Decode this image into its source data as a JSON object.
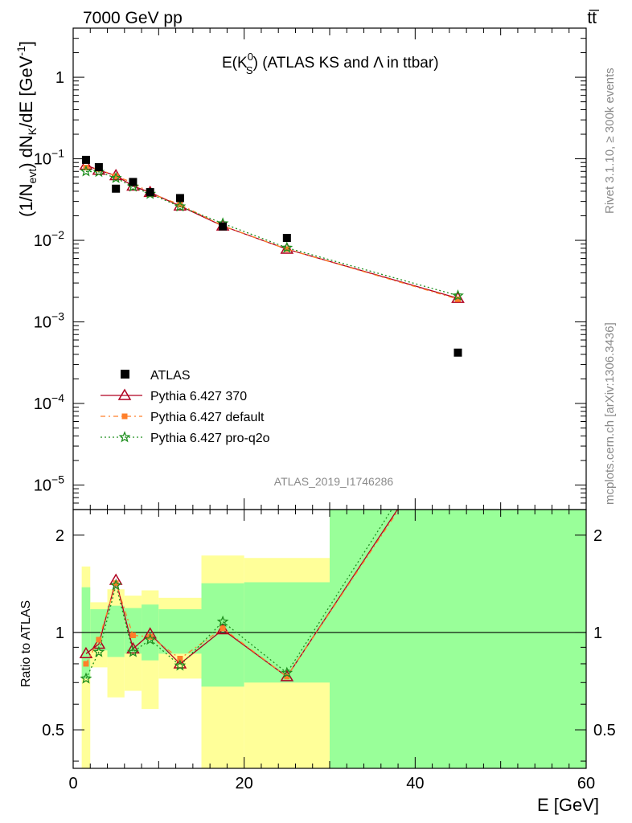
{
  "header": {
    "left": "7000 GeV pp",
    "right": "tt̅"
  },
  "side": {
    "rivet": "Rivet 3.1.10, ≥ 300k events",
    "mcplots": "mcplots.cern.ch [arXiv:1306.3436]"
  },
  "chart_data": {
    "type": "line",
    "title": {
      "main": "E(K",
      "sub": "S",
      "sup": "0",
      "rest": ") (ATLAS KS and Λ in ttbar)"
    },
    "analysis_id": "ATLAS_2019_I1746286",
    "xlabel": "E [GeV]",
    "ylabel": "(1/N_evt) dN_K/dE [GeV^-1]",
    "ratio_ylabel": "Ratio to ATLAS",
    "xlim": [
      0,
      60
    ],
    "ylim": [
      5e-06,
      4
    ],
    "yscale": "log",
    "ratio_ylim": [
      0.38,
      2.4
    ],
    "ratio_yscale": "log",
    "x_ticks": [
      "0",
      "20",
      "40",
      "60"
    ],
    "y_ticks": [
      {
        "base": "1",
        "exp": ""
      },
      {
        "base": "10",
        "exp": "−1"
      },
      {
        "base": "10",
        "exp": "−2"
      },
      {
        "base": "10",
        "exp": "−3"
      },
      {
        "base": "10",
        "exp": "−4"
      },
      {
        "base": "10",
        "exp": "−5"
      }
    ],
    "ratio_ticks": [
      "0.5",
      "1",
      "2"
    ],
    "x": [
      1.5,
      3,
      5,
      7,
      9,
      12.5,
      17.5,
      25,
      45
    ],
    "data": {
      "name": "ATLAS",
      "values": [
        0.097,
        0.079,
        0.043,
        0.052,
        0.039,
        0.033,
        0.0148,
        0.0107,
        0.00042
      ]
    },
    "series": [
      {
        "name": "Pythia 6.427 370",
        "color": "#b00020",
        "marker": "triangle",
        "values": [
          0.0835,
          0.0725,
          0.0622,
          0.0463,
          0.0387,
          0.0264,
          0.015,
          0.0078,
          0.00195
        ],
        "ratio": [
          0.86,
          0.92,
          1.45,
          0.89,
          0.99,
          0.8,
          1.02,
          0.73,
          4.6
        ]
      },
      {
        "name": "Pythia 6.427 default",
        "color": "#ff7f2a",
        "marker": "square",
        "values": [
          0.078,
          0.075,
          0.061,
          0.051,
          0.038,
          0.0274,
          0.0151,
          0.0078,
          0.0019
        ],
        "ratio": [
          0.8,
          0.95,
          1.42,
          0.98,
          0.97,
          0.83,
          1.03,
          0.73,
          4.5
        ]
      },
      {
        "name": "Pythia 6.427 pro-q2o",
        "color": "#1f8f1f",
        "marker": "star",
        "values": [
          0.07,
          0.069,
          0.058,
          0.0455,
          0.037,
          0.026,
          0.0161,
          0.0081,
          0.0021
        ],
        "ratio": [
          0.72,
          0.87,
          1.4,
          0.87,
          0.95,
          0.79,
          1.08,
          0.75,
          5.0
        ]
      }
    ],
    "uncertainty_bands": [
      {
        "x0": 1,
        "x1": 2,
        "stat": [
          0.72,
          1.38
        ],
        "total": [
          0.37,
          1.6
        ]
      },
      {
        "x0": 2,
        "x1": 4,
        "stat": [
          0.88,
          1.18
        ],
        "total": [
          0.78,
          1.24
        ]
      },
      {
        "x0": 4,
        "x1": 6,
        "stat": [
          0.84,
          1.21
        ],
        "total": [
          0.63,
          1.36
        ]
      },
      {
        "x0": 6,
        "x1": 8,
        "stat": [
          0.86,
          1.19
        ],
        "total": [
          0.66,
          1.3
        ]
      },
      {
        "x0": 8,
        "x1": 10,
        "stat": [
          0.82,
          1.22
        ],
        "total": [
          0.58,
          1.35
        ]
      },
      {
        "x0": 10,
        "x1": 15,
        "stat": [
          0.86,
          1.18
        ],
        "total": [
          0.72,
          1.28
        ]
      },
      {
        "x0": 15,
        "x1": 20,
        "stat": [
          0.68,
          1.42
        ],
        "total": [
          0.0,
          1.73
        ]
      },
      {
        "x0": 20,
        "x1": 30,
        "stat": [
          0.7,
          1.43
        ],
        "total": [
          0.0,
          1.7
        ]
      },
      {
        "x0": 30,
        "x1": 60,
        "stat": [
          0.0,
          9.0
        ],
        "total": [
          0.0,
          9.0
        ]
      }
    ],
    "band_colors": {
      "stat": "#99ff99",
      "total": "#ffff99"
    }
  }
}
